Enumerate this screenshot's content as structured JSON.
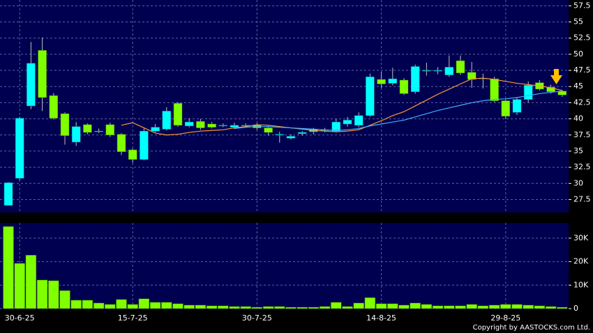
{
  "chart_data": [
    {
      "type": "candlestick",
      "open": [
        26.6,
        30.8,
        42.0,
        50.6,
        43.6,
        40.8,
        36.4,
        39.1,
        38.1,
        39.1,
        37.6,
        35.2,
        33.7,
        38.1,
        38.4,
        42.4,
        38.9,
        39.6,
        39.2,
        39.0,
        38.7,
        39.0,
        39.0,
        38.6,
        37.6,
        37.0,
        37.7,
        38.0,
        38.3,
        38.1,
        39.2,
        39.0,
        40.5,
        46.1,
        45.5,
        46.0,
        44.2,
        47.5,
        47.5,
        46.8,
        49.0,
        47.2,
        46.3,
        46.2,
        42.8,
        41.0,
        43.0,
        45.6,
        44.9,
        44.3
      ],
      "high": [
        30.2,
        40.3,
        51.9,
        52.6,
        44.0,
        41.0,
        39.5,
        39.3,
        38.5,
        39.4,
        37.8,
        35.4,
        38.5,
        39.2,
        41.8,
        42.6,
        40.1,
        40.0,
        39.5,
        39.3,
        39.4,
        39.3,
        39.3,
        38.8,
        38.0,
        37.6,
        38.1,
        38.6,
        38.6,
        40.0,
        40.3,
        41.0,
        47.0,
        47.3,
        47.9,
        46.3,
        48.4,
        48.7,
        48.0,
        49.8,
        49.8,
        48.8,
        47.0,
        46.5,
        43.0,
        43.3,
        45.8,
        46.0,
        45.3,
        44.5
      ],
      "low": [
        26.6,
        30.5,
        41.5,
        41.2,
        39.9,
        36.0,
        35.8,
        37.6,
        37.8,
        37.2,
        34.4,
        33.2,
        33.6,
        37.9,
        38.2,
        38.8,
        38.7,
        38.3,
        38.5,
        38.7,
        38.4,
        38.6,
        38.3,
        37.4,
        36.3,
        36.8,
        37.4,
        37.6,
        37.9,
        37.9,
        38.8,
        38.7,
        40.3,
        44.8,
        45.2,
        43.7,
        43.9,
        46.7,
        46.9,
        46.5,
        46.8,
        44.8,
        44.7,
        42.6,
        40.0,
        40.6,
        42.5,
        44.4,
        43.9,
        43.4
      ],
      "close": [
        30.1,
        40.1,
        48.6,
        43.3,
        40.1,
        37.4,
        38.8,
        37.9,
        38.1,
        37.5,
        34.9,
        33.7,
        38.1,
        38.7,
        41.2,
        39.0,
        39.5,
        38.6,
        38.7,
        39.0,
        39.0,
        39.0,
        38.6,
        37.9,
        37.6,
        37.3,
        37.9,
        38.4,
        38.3,
        39.5,
        39.8,
        40.5,
        46.5,
        45.4,
        46.2,
        43.9,
        48.1,
        47.5,
        47.5,
        48.0,
        47.1,
        46.1,
        46.3,
        42.8,
        40.4,
        43.0,
        45.2,
        44.6,
        44.2,
        43.7
      ],
      "up_color": "#00ffff",
      "down_color": "#80ff00",
      "series": [
        {
          "color": "#ff9a30",
          "values": [
            null,
            null,
            null,
            null,
            null,
            null,
            null,
            null,
            null,
            null,
            39.0,
            39.4,
            38.6,
            37.8,
            37.5,
            37.6,
            37.9,
            38.1,
            38.2,
            38.3,
            38.6,
            38.8,
            39.1,
            39.0,
            38.8,
            38.6,
            38.4,
            38.2,
            38.1,
            38.0,
            38.1,
            38.3,
            39.0,
            39.7,
            40.5,
            41.1,
            42.0,
            42.9,
            43.8,
            44.6,
            45.4,
            46.2,
            46.3,
            46.1,
            45.8,
            45.5,
            45.3,
            45.1,
            44.8,
            44.4
          ]
        },
        {
          "color": "#40b0ff",
          "values": [
            null,
            null,
            null,
            null,
            null,
            null,
            null,
            null,
            null,
            null,
            null,
            null,
            null,
            null,
            null,
            null,
            null,
            null,
            null,
            null,
            38.5,
            38.7,
            38.8,
            38.8,
            38.7,
            38.6,
            38.5,
            38.4,
            38.3,
            38.2,
            38.3,
            38.5,
            38.9,
            39.2,
            39.5,
            39.8,
            40.3,
            40.8,
            41.3,
            41.7,
            42.1,
            42.5,
            42.8,
            43.0,
            43.1,
            43.3,
            43.6,
            43.9,
            44.1,
            44.3
          ]
        }
      ],
      "ylim": [
        25.5,
        58.4
      ],
      "yticks": [
        27.5,
        30,
        32.5,
        35,
        37.5,
        40,
        42.5,
        45,
        47.5,
        50,
        52.5,
        55,
        57.5
      ],
      "grid": true
    },
    {
      "type": "bar",
      "categories": [
        null,
        "30-6-25",
        null,
        null,
        null,
        null,
        null,
        null,
        null,
        null,
        null,
        "15-7-25",
        null,
        null,
        null,
        null,
        null,
        null,
        null,
        null,
        null,
        null,
        "30-7-25",
        null,
        null,
        null,
        null,
        null,
        null,
        null,
        null,
        null,
        null,
        "14-8-25",
        null,
        null,
        null,
        null,
        null,
        null,
        null,
        null,
        null,
        null,
        "29-8-25",
        null,
        null,
        null,
        null,
        null
      ],
      "values": [
        35000,
        19300,
        22800,
        12200,
        11900,
        7700,
        3600,
        3600,
        2400,
        1800,
        3900,
        1800,
        4200,
        2700,
        2700,
        2100,
        1500,
        1500,
        1200,
        1200,
        900,
        900,
        600,
        900,
        900,
        600,
        600,
        600,
        900,
        2700,
        900,
        2400,
        4700,
        2100,
        2100,
        1500,
        2400,
        1800,
        1200,
        1200,
        1200,
        1800,
        1200,
        1500,
        1800,
        1800,
        1500,
        1200,
        900,
        600
      ],
      "color": "#80ff00",
      "ylim": [
        0,
        36500
      ],
      "yticks": [
        0,
        {
          "value": 10000,
          "label": "10K"
        },
        {
          "value": 20000,
          "label": "20K"
        },
        {
          "value": 30000,
          "label": "30K"
        }
      ],
      "grid": true
    }
  ],
  "copyright": "Copyright by AASTOCKS.com Ltd."
}
